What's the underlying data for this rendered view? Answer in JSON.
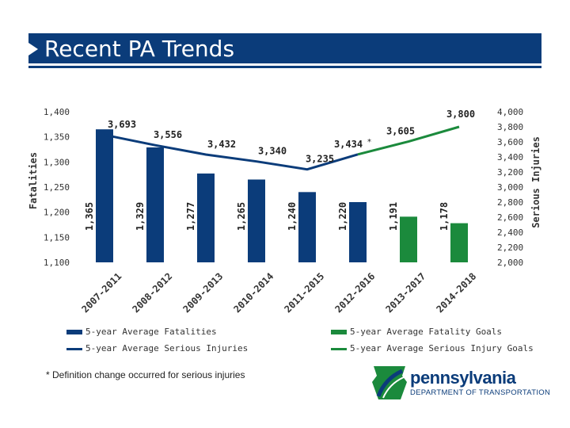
{
  "page": {
    "title": "Recent PA Trends"
  },
  "colors": {
    "fatalities": "#0b3c7a",
    "goals": "#1b8a3c",
    "banner": "#0b3c7a"
  },
  "chart_data": {
    "type": "bar+line",
    "categories": [
      "2007-2011",
      "2008-2012",
      "2009-2013",
      "2010-2014",
      "2011-2015",
      "2012-2016",
      "2013-2017",
      "2014-2018"
    ],
    "left_axis": {
      "label": "Fatalities",
      "min": 1100,
      "max": 1400,
      "ticks": [
        "1,100",
        "1,150",
        "1,200",
        "1,250",
        "1,300",
        "1,350",
        "1,400"
      ]
    },
    "right_axis": {
      "label": "Serious Injuries",
      "min": 2000,
      "max": 4000,
      "ticks": [
        "2,000",
        "2,200",
        "2,400",
        "2,600",
        "2,800",
        "3,000",
        "3,200",
        "3,400",
        "3,600",
        "3,800",
        "4,000"
      ]
    },
    "series": [
      {
        "name": "5-year Average Fatalities",
        "type": "bar",
        "axis": "left",
        "color": "#0b3c7a",
        "values": [
          1365,
          1329,
          1277,
          1265,
          1240,
          1220,
          null,
          null
        ],
        "labels": [
          "1,365",
          "1,329",
          "1,277",
          "1,265",
          "1,240",
          "1,220",
          "",
          ""
        ]
      },
      {
        "name": "5-year Average Fatality Goals",
        "type": "bar",
        "axis": "left",
        "color": "#1b8a3c",
        "values": [
          null,
          null,
          null,
          null,
          null,
          null,
          1191,
          1178
        ],
        "labels": [
          "",
          "",
          "",
          "",
          "",
          "",
          "1,191",
          "1,178"
        ]
      },
      {
        "name": "5-year Average Serious Injuries",
        "type": "line",
        "axis": "right",
        "color": "#0b3c7a",
        "values": [
          3693,
          3556,
          3432,
          3340,
          3235,
          3434,
          null,
          null
        ],
        "labels": [
          "3,693",
          "3,556",
          "3,432",
          "3,340",
          "3,235",
          "3,434",
          "",
          ""
        ]
      },
      {
        "name": "5-year Average Serious Injury Goals",
        "type": "line",
        "axis": "right",
        "color": "#1b8a3c",
        "values": [
          null,
          null,
          null,
          null,
          null,
          3434,
          3605,
          3800
        ],
        "labels": [
          "",
          "",
          "",
          "",
          "",
          "",
          "3,605",
          "3,800"
        ]
      }
    ],
    "annotation": "*"
  },
  "legend": [
    {
      "label": "5-year Average Fatalities",
      "kind": "bar",
      "color": "#0b3c7a"
    },
    {
      "label": "5-year Average Fatality Goals",
      "kind": "bar",
      "color": "#1b8a3c"
    },
    {
      "label": "5-year Average Serious Injuries",
      "kind": "line",
      "color": "#0b3c7a"
    },
    {
      "label": "5-year Average Serious Injury Goals",
      "kind": "line",
      "color": "#1b8a3c"
    }
  ],
  "footnote": "* Definition change occurred for serious injuries",
  "logo": {
    "name": "pennsylvania",
    "subtitle": "DEPARTMENT OF TRANSPORTATION"
  }
}
